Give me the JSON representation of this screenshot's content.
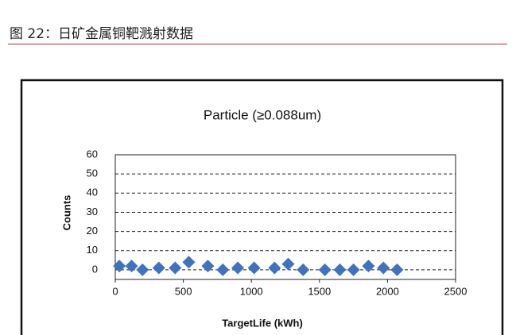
{
  "header": {
    "title": "图 22：日矿金属铜靶溅射数据"
  },
  "chart_data": {
    "type": "scatter",
    "title": "Particle (≥0.088um)",
    "x_label": "TargetLife (kWh)",
    "y_label": "Counts",
    "series": [
      {
        "color": "#3f72c0",
        "x": [
          30,
          120,
          200,
          320,
          440,
          540,
          680,
          790,
          900,
          1020,
          1170,
          1270,
          1380,
          1540,
          1650,
          1750,
          1860,
          1970,
          2070
        ],
        "values": [
          2,
          2,
          0,
          1,
          1,
          4,
          2,
          0,
          1,
          1,
          1,
          3,
          0,
          0,
          0,
          0,
          2,
          1,
          0
        ]
      }
    ],
    "xlim": [
      0,
      2500
    ],
    "xticks": [
      0,
      500,
      1000,
      1500,
      2000,
      2500
    ],
    "ylim": [
      -5,
      60
    ],
    "yticks": [
      0,
      10,
      20,
      30,
      40,
      50,
      60
    ],
    "grid": true
  }
}
